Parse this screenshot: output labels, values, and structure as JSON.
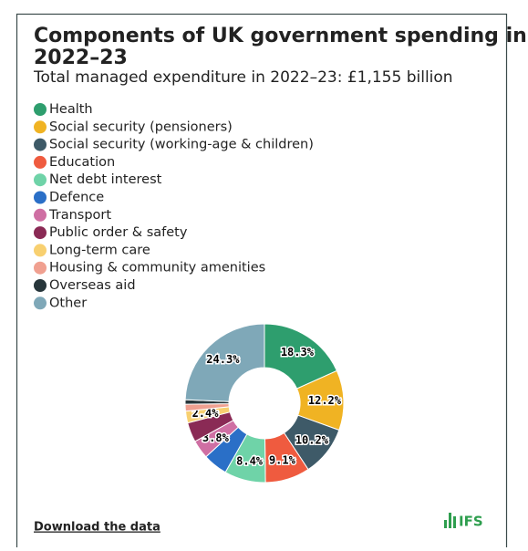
{
  "chart_data": {
    "type": "pie",
    "title": "Components of UK government spending in 2022–23",
    "subtitle": "Total managed expenditure in 2022–23: £1,155 billion",
    "categories": [
      "Health",
      "Social security (pensioners)",
      "Social security (working-age & children)",
      "Education",
      "Net debt interest",
      "Defence",
      "Transport",
      "Public order & safety",
      "Long-term care",
      "Housing & community amenities",
      "Overseas aid",
      "Other"
    ],
    "values": [
      18.3,
      12.2,
      10.2,
      9.1,
      8.4,
      5.0,
      3.8,
      4.0,
      2.4,
      1.4,
      0.9,
      24.3
    ],
    "value_labels": [
      "18.3%",
      "12.2%",
      "10.2%",
      "9.1%",
      "8.4%",
      null,
      "3.8%",
      null,
      "2.4%",
      null,
      null,
      "24.3%"
    ],
    "colors": [
      "#2e9e6e",
      "#f0b323",
      "#3e5a68",
      "#ef5b3f",
      "#6fd3a8",
      "#2a6fc7",
      "#cf6fa3",
      "#8a2a55",
      "#f8d070",
      "#f0a090",
      "#27363b",
      "#7fa8b8"
    ]
  },
  "footer": {
    "link": "Download the data",
    "logo": "IFS"
  }
}
